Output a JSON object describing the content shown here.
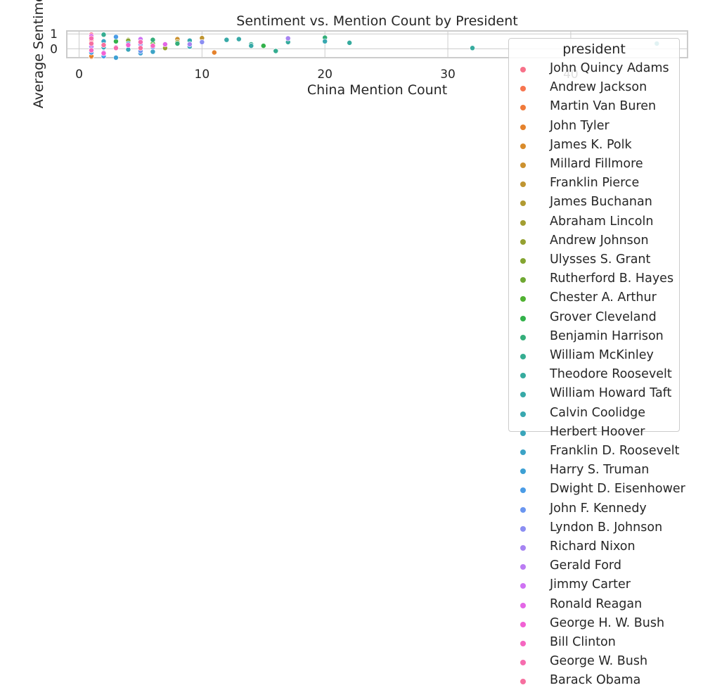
{
  "chart_data": {
    "type": "scatter",
    "title": "Sentiment vs. Mention Count by President",
    "xlabel": "China Mention Count",
    "ylabel": "Average Sentiment",
    "xlim": [
      -1,
      49.5
    ],
    "ylim": [
      -0.6,
      1.2
    ],
    "xticks": [
      "0",
      "10",
      "20",
      "30",
      "40"
    ],
    "yticks": [
      "0",
      "1"
    ],
    "grid": true,
    "legend": {
      "title": "president",
      "placement": "right"
    },
    "series": [
      {
        "name": "John Quincy Adams",
        "color": "#f77189",
        "points": [
          [
            1,
            0.95
          ]
        ]
      },
      {
        "name": "Andrew Jackson",
        "color": "#f7754f",
        "points": [
          [
            1,
            0.6
          ]
        ]
      },
      {
        "name": "Martin Van Buren",
        "color": "#f07a3a",
        "points": [
          [
            1,
            -0.55
          ]
        ]
      },
      {
        "name": "John Tyler",
        "color": "#e5822c",
        "points": [
          [
            11,
            -0.25
          ],
          [
            1,
            -0.5
          ]
        ]
      },
      {
        "name": "James K. Polk",
        "color": "#d98b2b",
        "points": [
          [
            3,
            0.1
          ]
        ]
      },
      {
        "name": "Millard Fillmore",
        "color": "#cc912f",
        "points": [
          [
            8,
            0.65
          ]
        ]
      },
      {
        "name": "Franklin Pierce",
        "color": "#bf9531",
        "points": [
          [
            10,
            0.72
          ]
        ]
      },
      {
        "name": "James Buchanan",
        "color": "#b19a31",
        "points": [
          [
            4,
            0.6
          ]
        ]
      },
      {
        "name": "Abraham Lincoln",
        "color": "#a39e31",
        "points": [
          [
            8,
            0.45
          ]
        ]
      },
      {
        "name": "Andrew Johnson",
        "color": "#95a131",
        "points": [
          [
            7,
            0.05
          ]
        ]
      },
      {
        "name": "Ulysses S. Grant",
        "color": "#84a531",
        "points": [
          [
            4,
            0.55
          ]
        ]
      },
      {
        "name": "Rutherford B. Hayes",
        "color": "#6fa832",
        "points": [
          [
            2,
            0.3
          ]
        ]
      },
      {
        "name": "Chester A. Arthur",
        "color": "#50b131",
        "points": [
          [
            6,
            0.35
          ]
        ]
      },
      {
        "name": "Grover Cleveland",
        "color": "#32b14a",
        "points": [
          [
            15,
            0.2
          ],
          [
            3,
            0.5
          ]
        ]
      },
      {
        "name": "Benjamin Harrison",
        "color": "#34ae7a",
        "points": [
          [
            20,
            0.75
          ],
          [
            8,
            0.35
          ],
          [
            6,
            0.6
          ]
        ]
      },
      {
        "name": "William McKinley",
        "color": "#35ad91",
        "points": [
          [
            14,
            0.3
          ],
          [
            16,
            -0.15
          ],
          [
            2,
            0.95
          ]
        ]
      },
      {
        "name": "Theodore Roosevelt",
        "color": "#36ab9e",
        "points": [
          [
            32,
            0.05
          ],
          [
            22,
            0.4
          ],
          [
            17,
            0.45
          ]
        ]
      },
      {
        "name": "William Howard Taft",
        "color": "#37a9a7",
        "points": [
          [
            12,
            0.6
          ],
          [
            13,
            0.65
          ],
          [
            14,
            0.2
          ]
        ]
      },
      {
        "name": "Calvin Coolidge",
        "color": "#38a8b0",
        "points": [
          [
            20,
            0.5
          ],
          [
            9,
            0.55
          ],
          [
            47,
            0.35
          ]
        ]
      },
      {
        "name": "Herbert Hoover",
        "color": "#3aa5ba",
        "points": [
          [
            9,
            0.15
          ],
          [
            4,
            -0.05
          ],
          [
            2,
            0.1
          ]
        ]
      },
      {
        "name": "Franklin D. Roosevelt",
        "color": "#3ba3c6",
        "points": [
          [
            6,
            -0.2
          ],
          [
            4,
            0.35
          ],
          [
            2,
            0.5
          ]
        ]
      },
      {
        "name": "Harry S. Truman",
        "color": "#3da0d4",
        "points": [
          [
            5,
            -0.3
          ],
          [
            3,
            -0.6
          ],
          [
            1,
            0.05
          ]
        ]
      },
      {
        "name": "Dwight D. Eisenhower",
        "color": "#4a9ce6",
        "points": [
          [
            3,
            0.8
          ],
          [
            2,
            -0.5
          ],
          [
            1,
            -0.25
          ]
        ]
      },
      {
        "name": "John F. Kennedy",
        "color": "#6a96f0",
        "points": [
          [
            5,
            -0.15
          ],
          [
            2,
            -0.25
          ],
          [
            6,
            0.1
          ]
        ]
      },
      {
        "name": "Lyndon B. Johnson",
        "color": "#8b8ef2",
        "points": [
          [
            10,
            0.45
          ],
          [
            5,
            0.3
          ]
        ]
      },
      {
        "name": "Richard Nixon",
        "color": "#a684f2",
        "points": [
          [
            17,
            0.7
          ],
          [
            9,
            0.3
          ]
        ]
      },
      {
        "name": "Gerald Ford",
        "color": "#bb7cf3",
        "points": [
          [
            1,
            0.15
          ]
        ]
      },
      {
        "name": "Jimmy Carter",
        "color": "#cf72f3",
        "points": [
          [
            5,
            0.65
          ],
          [
            3,
            0.1
          ]
        ]
      },
      {
        "name": "Ronald Reagan",
        "color": "#e367e6",
        "points": [
          [
            1,
            0.85
          ],
          [
            7,
            0.3
          ]
        ]
      },
      {
        "name": "George H. W. Bush",
        "color": "#f161d4",
        "points": [
          [
            2,
            -0.3
          ],
          [
            4,
            0.25
          ]
        ]
      },
      {
        "name": "Bill Clinton",
        "color": "#f566c0",
        "points": [
          [
            6,
            0.2
          ],
          [
            1,
            -0.1
          ]
        ]
      },
      {
        "name": "George W. Bush",
        "color": "#f66cae",
        "points": [
          [
            3,
            0.05
          ],
          [
            5,
            0.45
          ],
          [
            1,
            0.7
          ]
        ]
      },
      {
        "name": "Barack Obama",
        "color": "#f66f9f",
        "points": [
          [
            2,
            0.25
          ],
          [
            5,
            0.05
          ],
          [
            1,
            0.35
          ]
        ]
      }
    ]
  }
}
